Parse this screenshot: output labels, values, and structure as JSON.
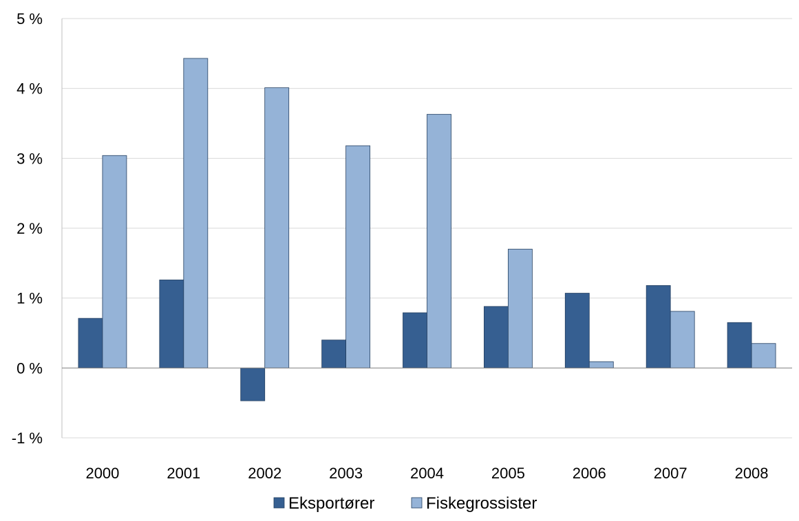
{
  "chart_data": {
    "type": "bar",
    "categories": [
      "2000",
      "2001",
      "2002",
      "2003",
      "2004",
      "2005",
      "2006",
      "2007",
      "2008"
    ],
    "series": [
      {
        "name": "Eksportører",
        "color": "#365f91",
        "values": [
          0.71,
          1.26,
          -0.47,
          0.4,
          0.79,
          0.88,
          1.07,
          1.18,
          0.65
        ]
      },
      {
        "name": "Fiskegrossister",
        "color": "#95b3d7",
        "values": [
          3.04,
          4.43,
          4.01,
          3.18,
          3.63,
          1.7,
          0.09,
          0.81,
          0.35
        ]
      }
    ],
    "y_ticks": [
      "-1 %",
      "0 %",
      "1 %",
      "2 %",
      "3 %",
      "4 %",
      "5 %"
    ],
    "ylim": [
      -1,
      5
    ],
    "xlabel": "",
    "ylabel": "",
    "title": "",
    "grid": true,
    "legend_position": "bottom-center"
  }
}
